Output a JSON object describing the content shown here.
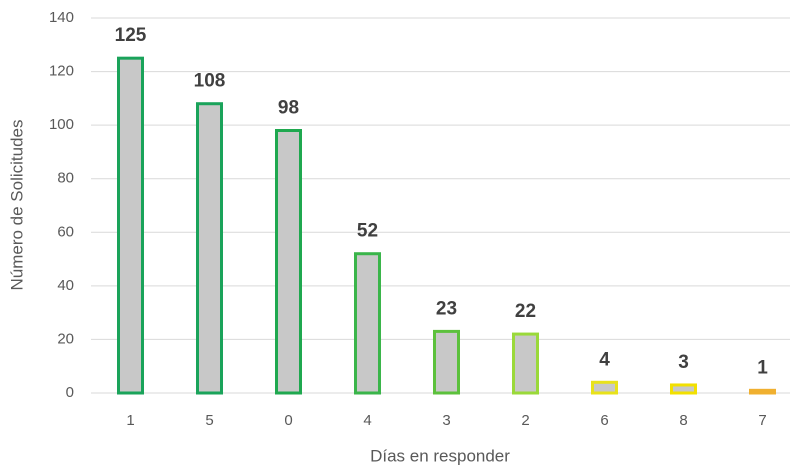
{
  "chart_data": {
    "type": "bar",
    "categories": [
      "1",
      "5",
      "0",
      "4",
      "3",
      "2",
      "6",
      "8",
      "7"
    ],
    "values": [
      125,
      108,
      98,
      52,
      23,
      22,
      4,
      3,
      1
    ],
    "color": "#c8c8c8",
    "edgecolors": [
      "#1aa35a",
      "#1aa35a",
      "#1fa84f",
      "#3ab54a",
      "#5cc13c",
      "#9ad93a",
      "#e8e21a",
      "#f2e000",
      "#f0b030"
    ],
    "xlabel": "Días en responder",
    "ylabel": "Número de Solicitudes",
    "ylim": [
      0,
      140
    ],
    "yticks": [
      0,
      20,
      40,
      60,
      80,
      100,
      120,
      140
    ],
    "grid": true
  }
}
